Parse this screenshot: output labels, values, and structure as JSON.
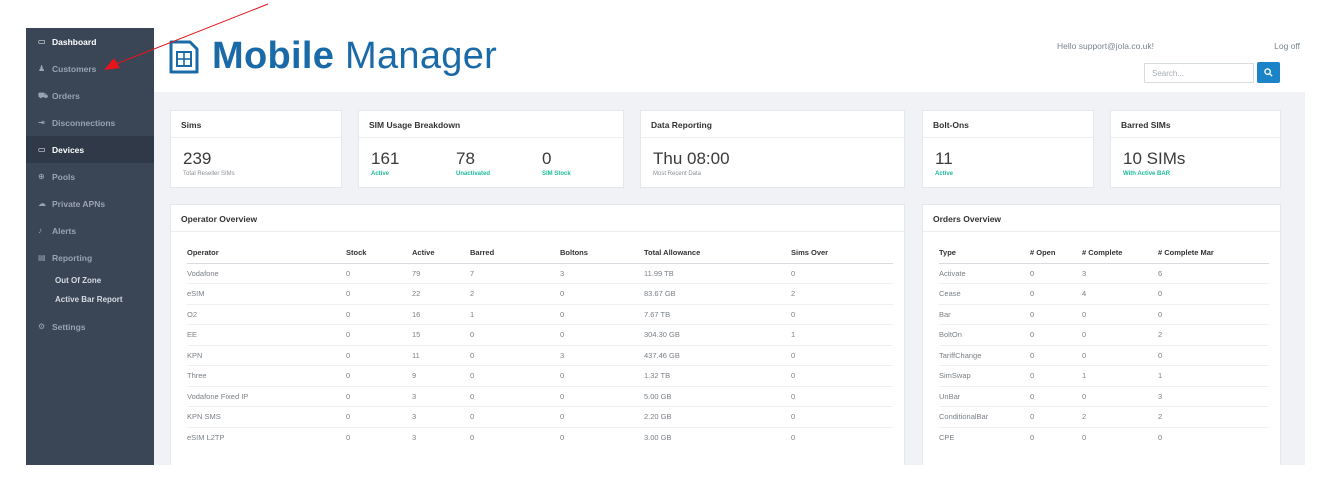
{
  "sidebar": {
    "items": [
      {
        "label": "Dashboard",
        "icon": "laptop-icon",
        "glyph": "▭"
      },
      {
        "label": "Customers",
        "icon": "user-icon",
        "glyph": "♟"
      },
      {
        "label": "Orders",
        "icon": "cart-icon",
        "glyph": "⛟"
      },
      {
        "label": "Disconnections",
        "icon": "sign-out-icon",
        "glyph": "⇥"
      },
      {
        "label": "Devices",
        "icon": "desktop-icon",
        "glyph": "▭"
      },
      {
        "label": "Pools",
        "icon": "lifebuoy-icon",
        "glyph": "⊕"
      },
      {
        "label": "Private APNs",
        "icon": "cloud-icon",
        "glyph": "☁"
      },
      {
        "label": "Alerts",
        "icon": "bell-icon",
        "glyph": "♪"
      },
      {
        "label": "Reporting",
        "icon": "chart-icon",
        "glyph": "▤"
      }
    ],
    "sub_items": [
      {
        "label": "Out Of Zone"
      },
      {
        "label": "Active Bar Report"
      }
    ],
    "settings": {
      "label": "Settings",
      "icon": "cogs-icon",
      "glyph": "⚙"
    }
  },
  "header": {
    "logo_bold": "Mobile",
    "logo_light": " Manager",
    "hello": "Hello support@jola.co.uk!",
    "logoff": "Log off",
    "search_placeholder": "Search..."
  },
  "cards": {
    "sims": {
      "title": "Sims",
      "value": "239",
      "sub": "Total Reseller SIMs"
    },
    "usage": {
      "title": "SIM Usage Breakdown",
      "stats": [
        {
          "value": "161",
          "label": "Active"
        },
        {
          "value": "78",
          "label": "Unactivated"
        },
        {
          "value": "0",
          "label": "SIM Stock"
        }
      ]
    },
    "data_reporting": {
      "title": "Data Reporting",
      "value": "Thu 08:00",
      "sub": "Most Recent Data"
    },
    "boltons": {
      "title": "Bolt-Ons",
      "value": "11",
      "sub": "Active"
    },
    "barred": {
      "title": "Barred SIMs",
      "value": "10 SIMs",
      "sub": "With Active BAR"
    }
  },
  "operator_overview": {
    "title": "Operator Overview",
    "columns": [
      "Operator",
      "Stock",
      "Active",
      "Barred",
      "Boltons",
      "Total Allowance",
      "Sims Over"
    ],
    "rows": [
      [
        "Vodafone",
        "0",
        "79",
        "7",
        "3",
        "11.99 TB",
        "0"
      ],
      [
        "eSIM",
        "0",
        "22",
        "2",
        "0",
        "83.67 GB",
        "2"
      ],
      [
        "O2",
        "0",
        "16",
        "1",
        "0",
        "7.67 TB",
        "0"
      ],
      [
        "EE",
        "0",
        "15",
        "0",
        "0",
        "304.30 GB",
        "1"
      ],
      [
        "KPN",
        "0",
        "11",
        "0",
        "3",
        "437.46 GB",
        "0"
      ],
      [
        "Three",
        "0",
        "9",
        "0",
        "0",
        "1.32 TB",
        "0"
      ],
      [
        "Vodafone Fixed IP",
        "0",
        "3",
        "0",
        "0",
        "5.00 GB",
        "0"
      ],
      [
        "KPN SMS",
        "0",
        "3",
        "0",
        "0",
        "2.20 GB",
        "0"
      ],
      [
        "eSIM L2TP",
        "0",
        "3",
        "0",
        "0",
        "3.00 GB",
        "0"
      ]
    ]
  },
  "orders_overview": {
    "title": "Orders Overview",
    "columns": [
      "Type",
      "# Open",
      "# Complete",
      "# Complete Mar"
    ],
    "rows": [
      [
        "Activate",
        "0",
        "3",
        "6"
      ],
      [
        "Cease",
        "0",
        "4",
        "0"
      ],
      [
        "Bar",
        "0",
        "0",
        "0"
      ],
      [
        "BoltOn",
        "0",
        "0",
        "2"
      ],
      [
        "TariffChange",
        "0",
        "0",
        "0"
      ],
      [
        "SimSwap",
        "0",
        "1",
        "1"
      ],
      [
        "UnBar",
        "0",
        "0",
        "3"
      ],
      [
        "ConditionalBar",
        "0",
        "2",
        "2"
      ],
      [
        "CPE",
        "0",
        "0",
        "0"
      ]
    ]
  },
  "colors": {
    "sidebar": "#3a4556",
    "brand": "#1b6aa8",
    "accent_green": "#1abc9c",
    "annotation_arrow": "#e8141b"
  }
}
